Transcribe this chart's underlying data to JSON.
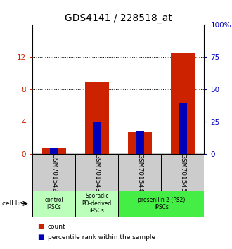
{
  "title": "GDS4141 / 228518_at",
  "samples": [
    "GSM701542",
    "GSM701543",
    "GSM701544",
    "GSM701545"
  ],
  "red_values": [
    0.7,
    9.0,
    2.8,
    12.5
  ],
  "blue_values_pct": [
    5.0,
    25.0,
    18.0,
    40.0
  ],
  "ylim_left": [
    0,
    16
  ],
  "ylim_right": [
    0,
    100
  ],
  "yticks_left": [
    0,
    4,
    8,
    12
  ],
  "ytick_labels_left": [
    "0",
    "4",
    "8",
    "12"
  ],
  "yticks_right": [
    0,
    25,
    50,
    75,
    100
  ],
  "ytick_labels_right": [
    "0",
    "25",
    "50",
    "75",
    "100%"
  ],
  "left_color": "#cc2200",
  "right_color": "#0000bb",
  "bar_width": 0.55,
  "sample_box_color": "#cccccc",
  "legend_count_color": "#cc2200",
  "legend_pct_color": "#0000bb",
  "cell_line_label": "cell line",
  "legend_count": "count",
  "legend_pct": "percentile rank within the sample",
  "group_defs": [
    {
      "s": 0,
      "e": 0,
      "label": "control\nIPSCs",
      "color": "#bbffbb"
    },
    {
      "s": 1,
      "e": 1,
      "label": "Sporadic\nPD-derived\niPSCs",
      "color": "#bbffbb"
    },
    {
      "s": 2,
      "e": 3,
      "label": "presenilin 2 (PS2)\niPSCs",
      "color": "#44ee44"
    }
  ],
  "title_fontsize": 10,
  "tick_fontsize": 7.5,
  "label_fontsize": 6.5,
  "group_fontsize": 5.5
}
